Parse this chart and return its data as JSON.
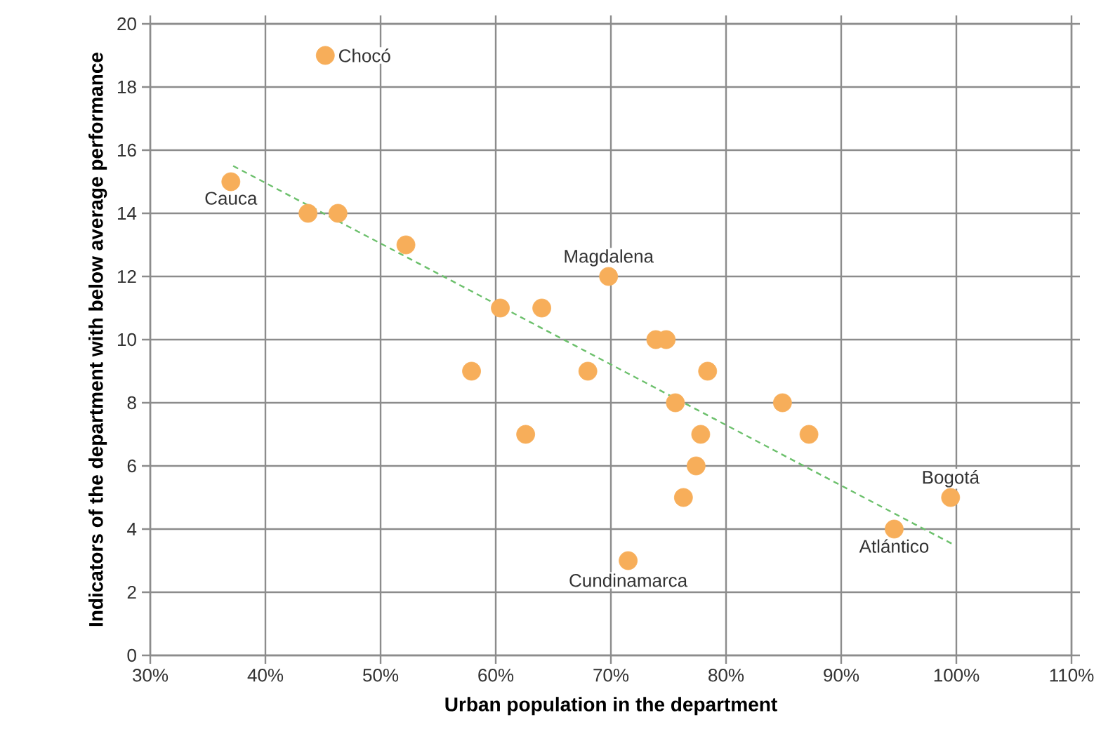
{
  "chart_data": {
    "type": "scatter",
    "xlabel": "Urban population in the department",
    "ylabel": "Indicators of the department with below average performance",
    "xlim": [
      30,
      110
    ],
    "ylim": [
      0,
      20
    ],
    "xticks": [
      {
        "value": 30,
        "label": "30%"
      },
      {
        "value": 40,
        "label": "40%"
      },
      {
        "value": 50,
        "label": "50%"
      },
      {
        "value": 60,
        "label": "60%"
      },
      {
        "value": 70,
        "label": "70%"
      },
      {
        "value": 80,
        "label": "80%"
      },
      {
        "value": 90,
        "label": "90%"
      },
      {
        "value": 100,
        "label": "100%"
      },
      {
        "value": 110,
        "label": "110%"
      }
    ],
    "yticks": [
      0,
      2,
      4,
      6,
      8,
      10,
      12,
      14,
      16,
      18,
      20
    ],
    "grid": true,
    "marker": "circle",
    "series": [
      {
        "color": "#f7ae5a",
        "x": [
          45.2,
          37.0,
          43.7,
          46.3,
          52.2,
          60.4,
          64.0,
          69.8,
          57.9,
          68.0,
          73.9,
          74.8,
          78.4,
          75.6,
          84.9,
          62.6,
          77.8,
          87.2,
          77.4,
          76.3,
          71.5,
          94.6,
          99.5
        ],
        "values": [
          19,
          15,
          14,
          14,
          13,
          11,
          11,
          12,
          9,
          9,
          10,
          10,
          9,
          8,
          8,
          7,
          7,
          7,
          6,
          5,
          3,
          4,
          5
        ]
      },
      {
        "type": "line",
        "color": "#6cc06c",
        "line_style": "dashed",
        "marker": "none",
        "x": [
          37.2,
          99.8
        ],
        "values": [
          15.5,
          3.5
        ]
      }
    ],
    "annotations": [
      {
        "text": "Chocó",
        "x": 45.2,
        "y": 19
      },
      {
        "text": "Cauca",
        "x": 37.0,
        "y": 15
      },
      {
        "text": "Magdalena",
        "x": 69.8,
        "y": 12
      },
      {
        "text": "Cundinamarca",
        "x": 71.5,
        "y": 3
      },
      {
        "text": "Atlántico",
        "x": 94.6,
        "y": 4
      },
      {
        "text": "Bogotá",
        "x": 99.5,
        "y": 5
      }
    ]
  }
}
